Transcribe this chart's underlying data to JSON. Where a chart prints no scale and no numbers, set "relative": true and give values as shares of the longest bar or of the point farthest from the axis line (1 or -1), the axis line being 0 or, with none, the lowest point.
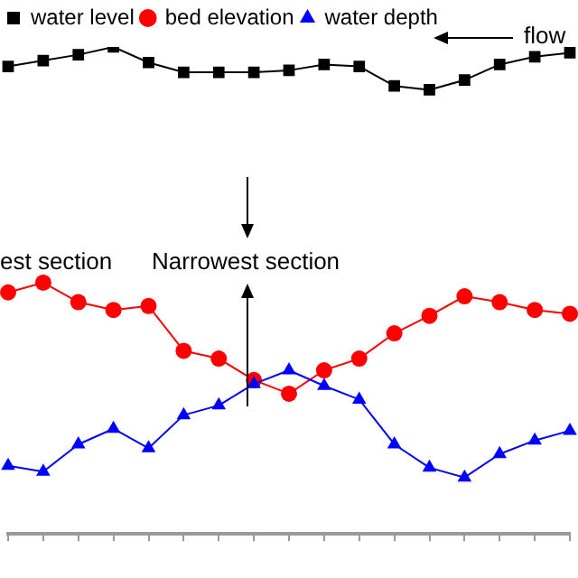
{
  "chart_data": {
    "type": "line",
    "relative": true,
    "legend": "top left",
    "grid": false,
    "categories": [
      null,
      null,
      null,
      null,
      null,
      null,
      null,
      null,
      null,
      null,
      null,
      null,
      null,
      null,
      null,
      null,
      null
    ],
    "series": [
      {
        "name": "water level",
        "color": "#000000",
        "marker": "square",
        "values": [
          0.96,
          0.972,
          0.984,
          1,
          0.968,
          0.948,
          0.948,
          0.948,
          0.952,
          0.964,
          0.96,
          0.92,
          0.912,
          0.932,
          0.964,
          0.98,
          0.988
        ]
      },
      {
        "name": "bed elevation",
        "color": "#ff0000",
        "marker": "circle",
        "values": [
          0.496,
          0.516,
          0.476,
          0.46,
          0.468,
          0.376,
          0.36,
          0.316,
          0.288,
          0.336,
          0.36,
          0.412,
          0.448,
          0.488,
          0.476,
          0.46,
          0.452
        ]
      },
      {
        "name": "water depth",
        "color": "#0000ff",
        "marker": "triangle",
        "values": [
          0.14,
          0.128,
          0.184,
          0.216,
          0.176,
          0.244,
          0.264,
          0.308,
          0.336,
          0.304,
          0.276,
          0.184,
          0.136,
          0.116,
          0.164,
          0.192,
          0.212
        ]
      }
    ],
    "annotations": [
      "flow",
      "est section",
      "Narrowest section"
    ]
  }
}
